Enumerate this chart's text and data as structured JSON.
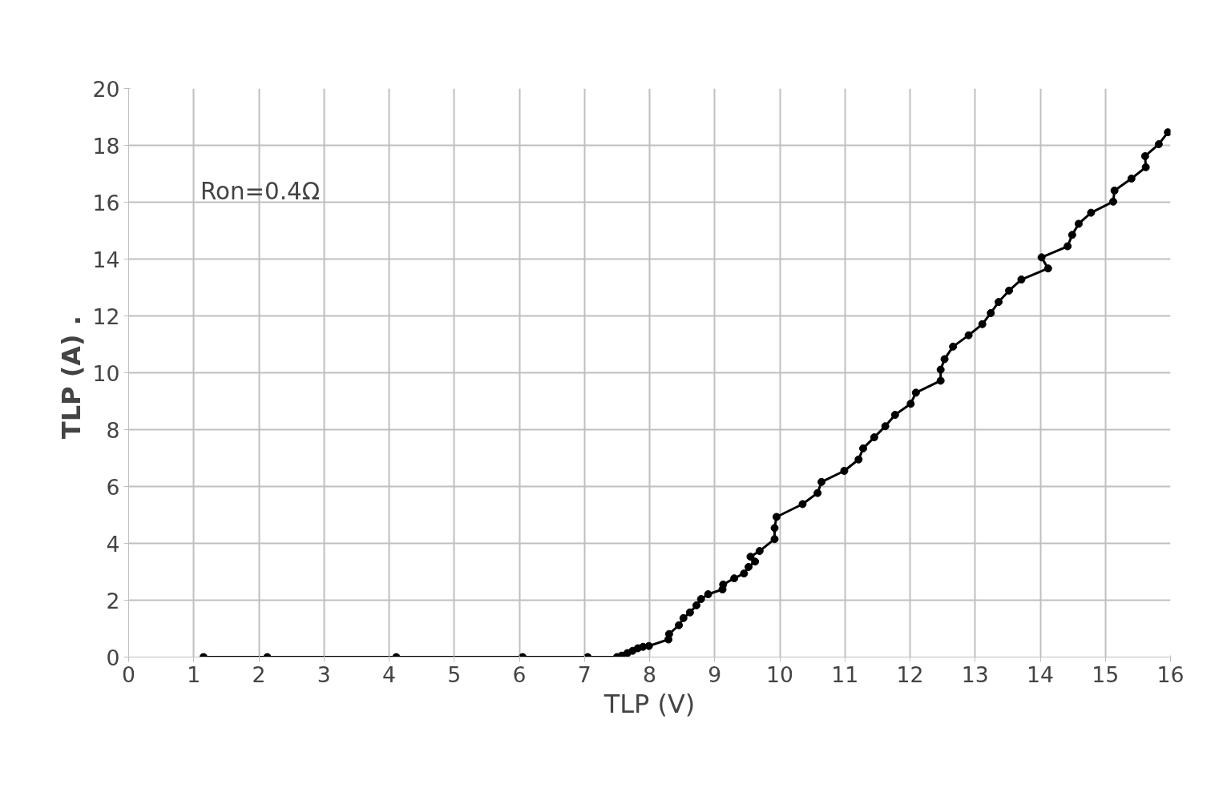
{
  "chart_data": {
    "type": "line",
    "xlabel": "TLP (V)",
    "ylabel": "TLP (A)  .",
    "annotations": [
      "Ron=0.4Ω"
    ],
    "series": [
      {
        "color": "#000000",
        "x": [
          1.15,
          2.13,
          4.11,
          6.05,
          7.05,
          7.5,
          7.57,
          7.66,
          7.74,
          7.82,
          7.9,
          7.99,
          8.29,
          8.3,
          8.45,
          8.52,
          8.62,
          8.72,
          8.79,
          8.9,
          9.12,
          9.13,
          9.3,
          9.45,
          9.52,
          9.62,
          9.55,
          9.69,
          9.92,
          9.92,
          9.95,
          10.35,
          10.58,
          10.64,
          10.99,
          11.21,
          11.28,
          11.45,
          11.62,
          11.77,
          12.01,
          12.09,
          12.47,
          12.47,
          12.53,
          12.66,
          12.9,
          13.11,
          13.24,
          13.36,
          13.52,
          13.71,
          14.12,
          14.02,
          14.42,
          14.49,
          14.59,
          14.78,
          15.12,
          15.14,
          15.4,
          15.62,
          15.61,
          15.82,
          15.96
        ],
        "values": [
          0,
          0,
          0,
          0,
          0,
          0,
          0.05,
          0.14,
          0.22,
          0.31,
          0.36,
          0.39,
          0.62,
          0.81,
          1.12,
          1.37,
          1.57,
          1.82,
          2.04,
          2.21,
          2.38,
          2.55,
          2.77,
          2.94,
          3.17,
          3.36,
          3.53,
          3.73,
          4.15,
          4.54,
          4.93,
          5.38,
          5.77,
          6.16,
          6.55,
          6.95,
          7.34,
          7.73,
          8.12,
          8.52,
          8.91,
          9.3,
          9.72,
          10.11,
          10.48,
          10.92,
          11.32,
          11.71,
          12.1,
          12.49,
          12.89,
          13.28,
          13.67,
          14.06,
          14.45,
          14.85,
          15.24,
          15.63,
          16.02,
          16.41,
          16.83,
          17.23,
          17.62,
          18.04,
          18.46
        ]
      }
    ],
    "xlim": [
      0,
      16
    ],
    "xticks": [
      0,
      1,
      2,
      3,
      4,
      5,
      6,
      7,
      8,
      9,
      10,
      11,
      12,
      13,
      14,
      15,
      16
    ],
    "ylim": [
      0,
      20
    ],
    "yticks": [
      0,
      2,
      4,
      6,
      8,
      10,
      12,
      14,
      16,
      18,
      20
    ],
    "grid": true,
    "marker": "circle",
    "line_style": "solid"
  }
}
